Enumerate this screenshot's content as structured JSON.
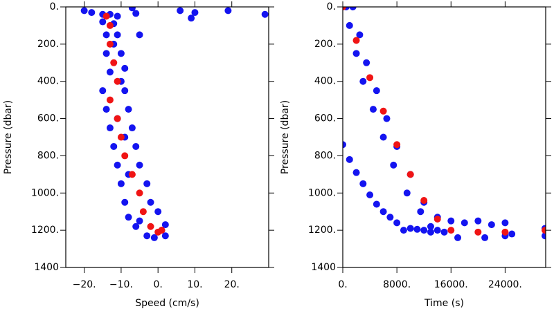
{
  "chart_data": [
    {
      "type": "scatter",
      "x_label": "Speed (cm/s)",
      "y_label": "Pressure (dbar)",
      "xlim": [
        -25,
        30
      ],
      "ylim": [
        1400,
        0
      ],
      "xticks": [
        {
          "value": -20,
          "label": "−20."
        },
        {
          "value": -10,
          "label": "−10."
        },
        {
          "value": 0,
          "label": "0."
        },
        {
          "value": 10,
          "label": "10."
        },
        {
          "value": 20,
          "label": "20."
        }
      ],
      "yticks": [
        {
          "value": 0,
          "label": "0."
        },
        {
          "value": 200,
          "label": "200."
        },
        {
          "value": 400,
          "label": "400."
        },
        {
          "value": 600,
          "label": "600."
        },
        {
          "value": 800,
          "label": "800."
        },
        {
          "value": 1000,
          "label": "1000."
        },
        {
          "value": 1200,
          "label": "1200."
        },
        {
          "value": 1400,
          "label": "1400"
        }
      ],
      "series": [
        {
          "color": "#1414f0",
          "x": [
            -15,
            -13,
            -11,
            -15,
            -12,
            -14,
            -11,
            -14,
            -10,
            -13,
            -9,
            -15,
            -9,
            -14,
            -8,
            -13,
            -7,
            -12,
            -6,
            -11,
            -5,
            -10,
            -3,
            -9,
            -2,
            -8,
            0,
            -6,
            2,
            -3,
            2,
            -20,
            -18,
            -7,
            6,
            10,
            9,
            19,
            29,
            -5,
            -6,
            -12,
            -10,
            -11,
            -9,
            -8,
            -5,
            -1,
            1
          ],
          "y": [
            40,
            40,
            50,
            80,
            90,
            150,
            150,
            250,
            250,
            350,
            330,
            450,
            450,
            550,
            550,
            650,
            650,
            750,
            750,
            850,
            850,
            950,
            950,
            1050,
            1050,
            1130,
            1100,
            1180,
            1170,
            1230,
            1230,
            20,
            30,
            5,
            20,
            30,
            60,
            20,
            40,
            150,
            35,
            200,
            400,
            600,
            700,
            900,
            1150,
            1240,
            1200
          ]
        },
        {
          "color": "#f01414",
          "x": [
            -14,
            -13,
            -13,
            -12,
            -11,
            -13,
            -11,
            -10,
            -9,
            -7,
            -5,
            -4,
            -2,
            0,
            1
          ],
          "y": [
            50,
            100,
            200,
            300,
            400,
            500,
            600,
            700,
            800,
            900,
            1000,
            1100,
            1180,
            1210,
            1200
          ]
        }
      ]
    },
    {
      "type": "scatter",
      "x_label": "Time (s)",
      "y_label": "Pressure (dbar)",
      "xlim": [
        0,
        30000
      ],
      "ylim": [
        1400,
        0
      ],
      "xticks": [
        {
          "value": 0,
          "label": "0."
        },
        {
          "value": 8000,
          "label": "8000."
        },
        {
          "value": 16000,
          "label": "16000."
        },
        {
          "value": 24000,
          "label": "24000."
        }
      ],
      "yticks": [
        {
          "value": 0,
          "label": "0."
        },
        {
          "value": 200,
          "label": "200."
        },
        {
          "value": 400,
          "label": "400."
        },
        {
          "value": 600,
          "label": "600."
        },
        {
          "value": 800,
          "label": "800."
        },
        {
          "value": 1000,
          "label": "1000."
        },
        {
          "value": 1200,
          "label": "1200."
        },
        {
          "value": 1400,
          "label": "1400"
        }
      ],
      "series": [
        {
          "color": "#1414f0",
          "x": [
            500,
            1500,
            1000,
            2500,
            2000,
            3500,
            3000,
            5000,
            4500,
            6500,
            6000,
            8000,
            7500,
            10000,
            9500,
            12000,
            11500,
            14000,
            13000,
            16000,
            18000,
            20000,
            22000,
            24000,
            17000,
            21000,
            24000,
            25000,
            29900,
            29900,
            0,
            1000,
            2000,
            3000,
            4000,
            5000,
            6000,
            7000,
            8000,
            9000,
            10000,
            11000,
            12000,
            13000,
            14000,
            15000
          ],
          "y": [
            0,
            0,
            100,
            150,
            250,
            300,
            400,
            450,
            550,
            600,
            700,
            750,
            850,
            900,
            1000,
            1050,
            1100,
            1130,
            1180,
            1150,
            1160,
            1150,
            1170,
            1160,
            1240,
            1240,
            1230,
            1220,
            1190,
            1230,
            740,
            820,
            890,
            950,
            1010,
            1060,
            1100,
            1130,
            1160,
            1200,
            1190,
            1195,
            1200,
            1210,
            1200,
            1210
          ]
        },
        {
          "color": "#f01414",
          "x": [
            0,
            2000,
            4000,
            6000,
            8000,
            10000,
            12000,
            14000,
            16000,
            20000,
            24000,
            29900
          ],
          "y": [
            0,
            180,
            380,
            560,
            740,
            900,
            1040,
            1140,
            1200,
            1210,
            1210,
            1200
          ]
        }
      ]
    }
  ]
}
